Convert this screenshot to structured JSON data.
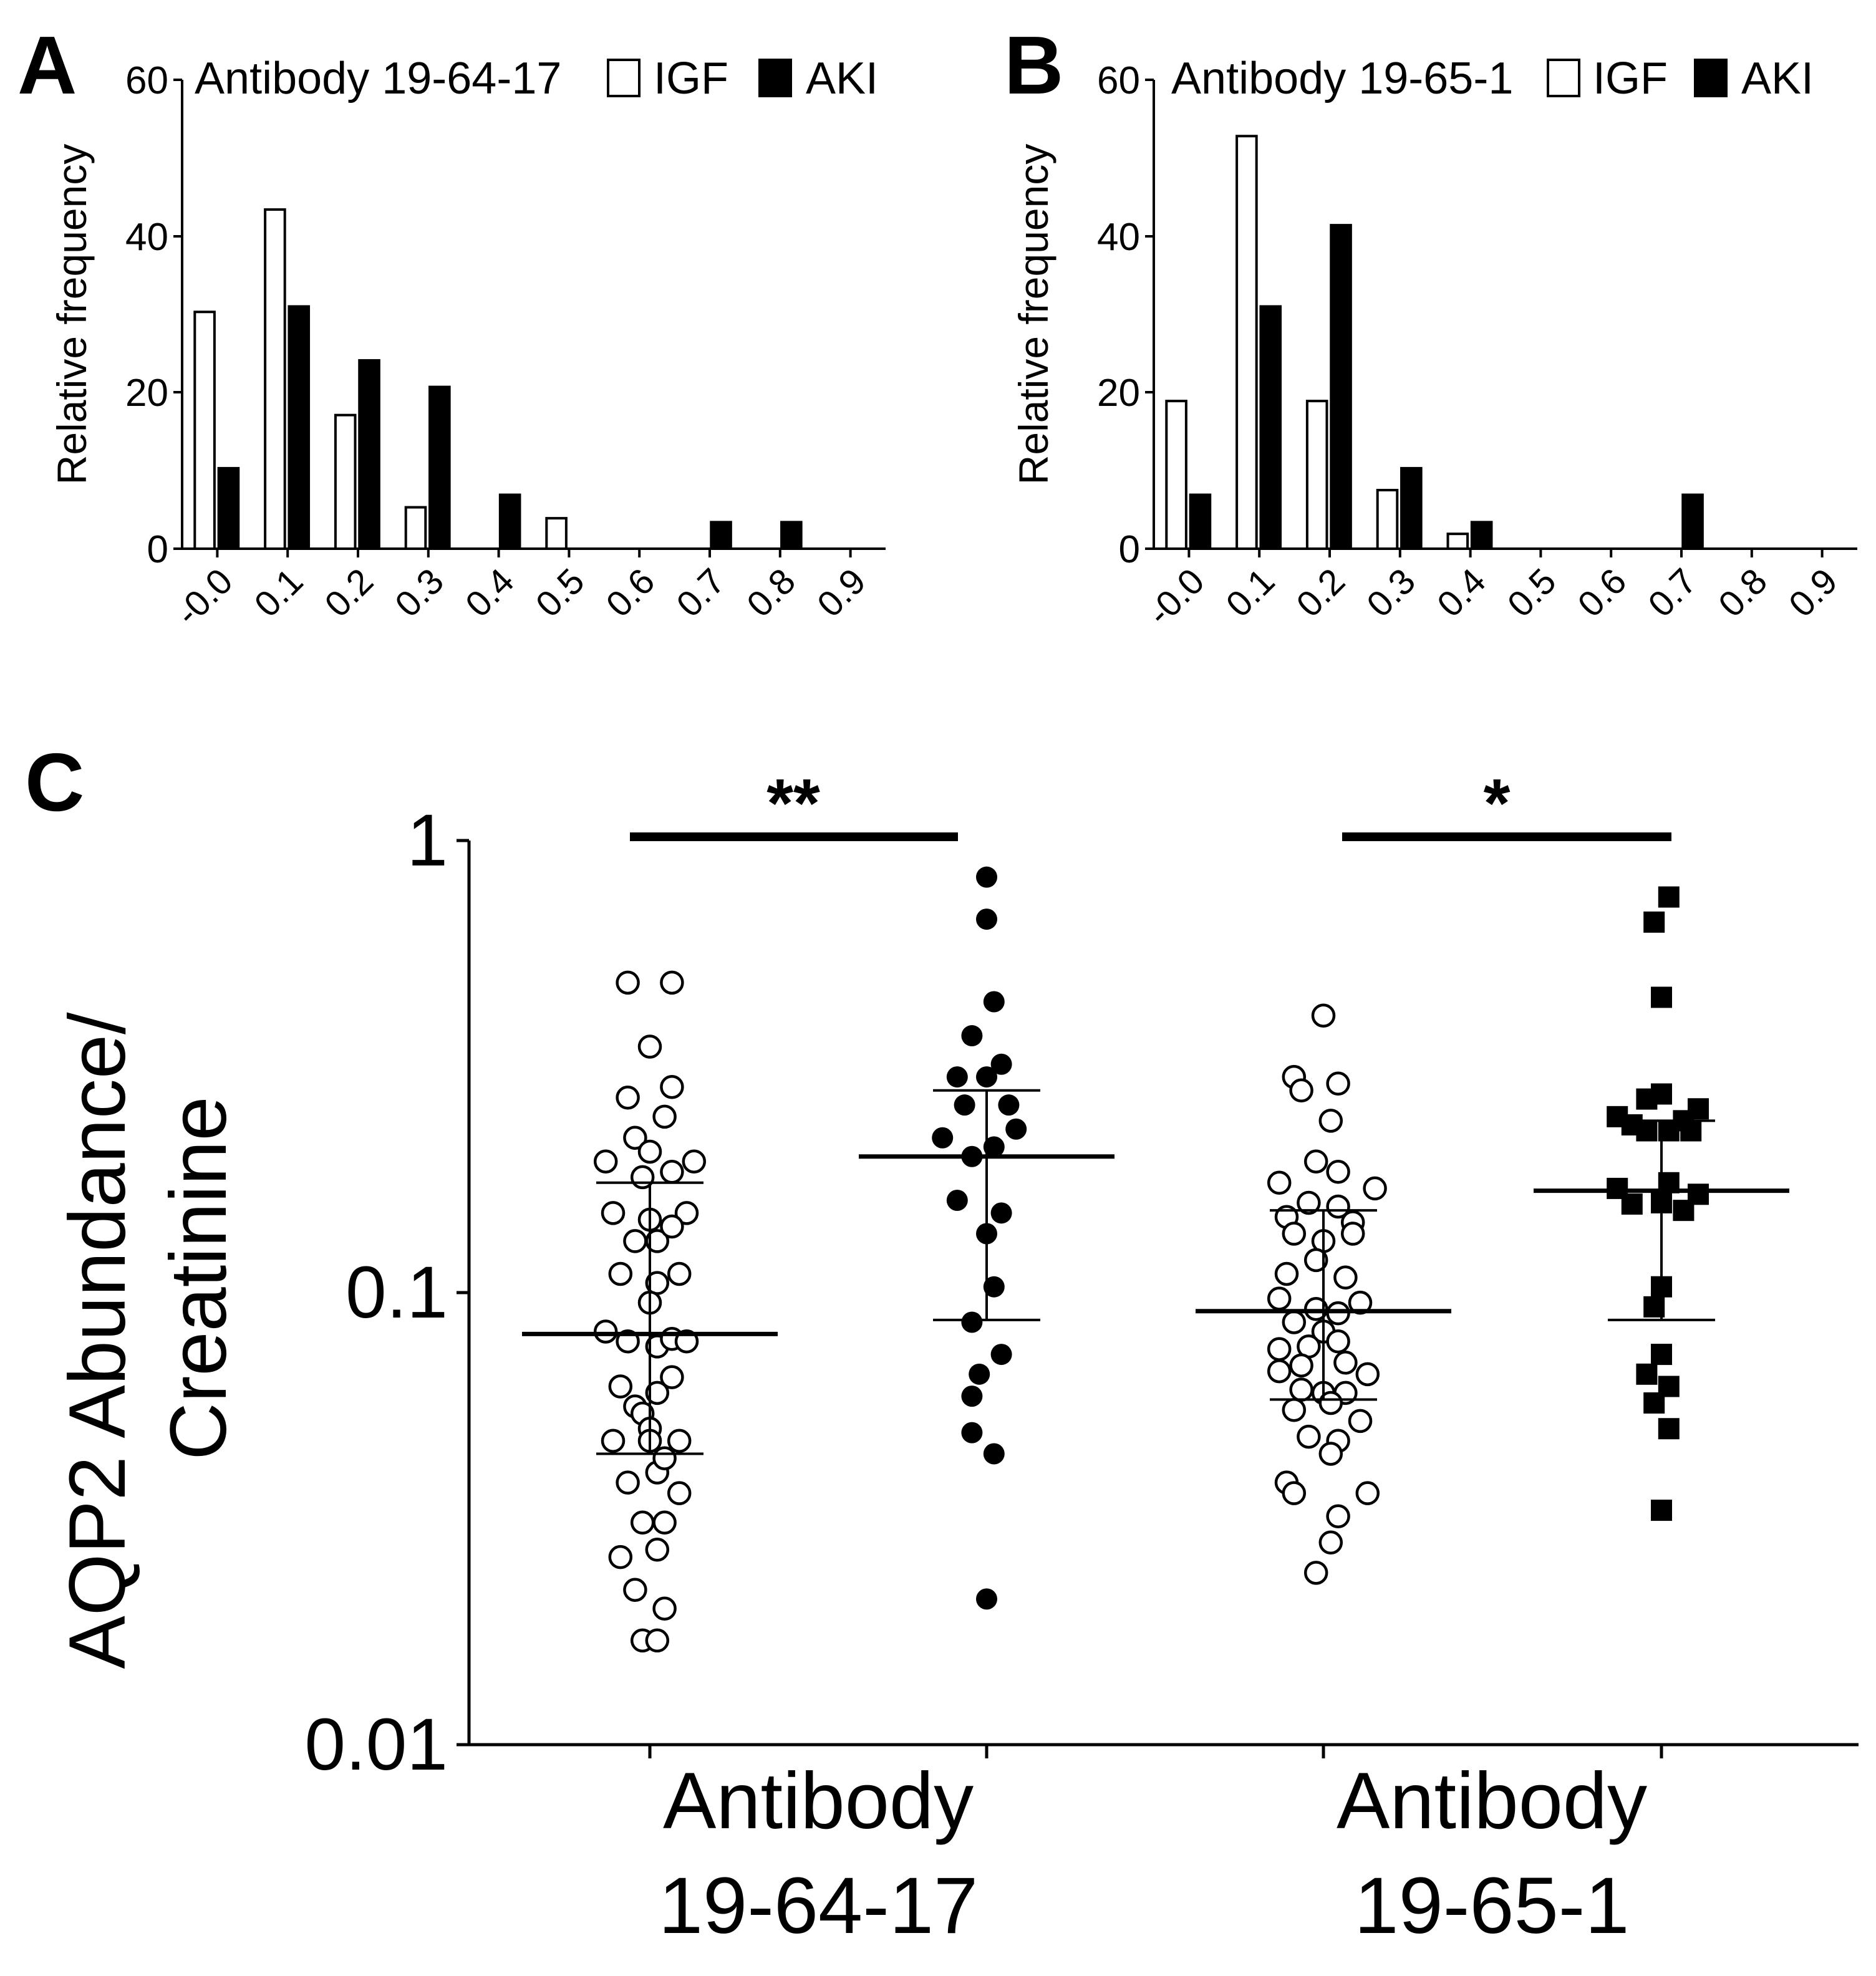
{
  "panels": {
    "A": "A",
    "B": "B",
    "C": "C"
  },
  "legend": {
    "igf": "IGF",
    "aki": "AKI"
  },
  "chart_data": [
    {
      "id": "A",
      "type": "bar",
      "title": "Antibody 19-64-17",
      "xlabel": "",
      "ylabel": "Relative frequency",
      "ylim": [
        0,
        60
      ],
      "yticks": [
        "0",
        "20",
        "40",
        "60"
      ],
      "categories": [
        "-0.0",
        "0.1",
        "0.2",
        "0.3",
        "0.4",
        "0.5",
        "0.6",
        "0.7",
        "0.8",
        "0.9"
      ],
      "series": [
        {
          "name": "IGF",
          "values": [
            30.3,
            43.4,
            17.1,
            5.3,
            0,
            3.9,
            0,
            0,
            0,
            0
          ],
          "fill": "#ffffff"
        },
        {
          "name": "AKI",
          "values": [
            10.3,
            31.0,
            24.1,
            20.7,
            6.9,
            0,
            0,
            3.4,
            3.4,
            0
          ],
          "fill": "#000000"
        }
      ]
    },
    {
      "id": "B",
      "type": "bar",
      "title": "Antibody 19-65-1",
      "xlabel": "",
      "ylabel": "Relative frequency",
      "ylim": [
        0,
        60
      ],
      "yticks": [
        "0",
        "20",
        "40",
        "60"
      ],
      "categories": [
        "-0.0",
        "0.1",
        "0.2",
        "0.3",
        "0.4",
        "0.5",
        "0.6",
        "0.7",
        "0.8",
        "0.9"
      ],
      "series": [
        {
          "name": "IGF",
          "values": [
            18.9,
            52.8,
            18.9,
            7.5,
            1.9,
            0,
            0,
            0,
            0,
            0
          ],
          "fill": "#ffffff"
        },
        {
          "name": "AKI",
          "values": [
            6.9,
            31.0,
            41.4,
            10.3,
            3.4,
            0,
            0,
            6.9,
            0,
            0
          ],
          "fill": "#000000"
        }
      ]
    },
    {
      "id": "C",
      "type": "scatter",
      "title": "",
      "xlabel": "",
      "ylabel": [
        "AQP2 Abundance/",
        "Creatinine"
      ],
      "yscale": "log",
      "ylim": [
        0.01,
        1
      ],
      "yticks": [
        "0.01",
        "0.1",
        "1"
      ],
      "categories": [
        [
          "Antibody",
          "19-64-17"
        ],
        [
          "Antibody",
          "19-65-1"
        ]
      ],
      "significance": [
        "**",
        "*"
      ],
      "series": [
        {
          "name": "IGF 19-64-17",
          "group": 0,
          "marker": "open-circle",
          "median": 0.081,
          "iqr": [
            0.044,
            0.175
          ],
          "points": [
            [
              -0.15,
              0.485
            ],
            [
              0.15,
              0.485
            ],
            [
              0,
              0.35
            ],
            [
              -0.15,
              0.27
            ],
            [
              0.15,
              0.285
            ],
            [
              0.1,
              0.245
            ],
            [
              -0.1,
              0.22
            ],
            [
              0,
              0.205
            ],
            [
              -0.3,
              0.195
            ],
            [
              -0.05,
              0.18
            ],
            [
              0.15,
              0.185
            ],
            [
              0.3,
              0.195
            ],
            [
              -0.25,
              0.15
            ],
            [
              0,
              0.145
            ],
            [
              0.25,
              0.15
            ],
            [
              -0.1,
              0.13
            ],
            [
              0.05,
              0.13
            ],
            [
              0.15,
              0.14
            ],
            [
              -0.2,
              0.11
            ],
            [
              0.05,
              0.105
            ],
            [
              0.2,
              0.11
            ],
            [
              0,
              0.095
            ],
            [
              -0.3,
              0.082
            ],
            [
              -0.15,
              0.078
            ],
            [
              0.05,
              0.076
            ],
            [
              0.15,
              0.079
            ],
            [
              0.25,
              0.078
            ],
            [
              -0.2,
              0.062
            ],
            [
              0.15,
              0.065
            ],
            [
              -0.1,
              0.056
            ],
            [
              0.05,
              0.06
            ],
            [
              -0.05,
              0.054
            ],
            [
              0,
              0.05
            ],
            [
              -0.25,
              0.047
            ],
            [
              0,
              0.047
            ],
            [
              0.2,
              0.047
            ],
            [
              -0.15,
              0.038
            ],
            [
              0.05,
              0.04
            ],
            [
              0.1,
              0.043
            ],
            [
              0.2,
              0.036
            ],
            [
              -0.05,
              0.031
            ],
            [
              0.1,
              0.031
            ],
            [
              -0.2,
              0.026
            ],
            [
              0.05,
              0.027
            ],
            [
              -0.1,
              0.022
            ],
            [
              0.1,
              0.02
            ],
            [
              -0.05,
              0.017
            ],
            [
              0.05,
              0.017
            ]
          ]
        },
        {
          "name": "AKI 19-64-17",
          "group": 1,
          "marker": "filled-circle",
          "median": 0.2,
          "iqr": [
            0.087,
            0.28
          ],
          "points": [
            [
              0,
              0.83
            ],
            [
              0,
              0.67
            ],
            [
              0.05,
              0.44
            ],
            [
              -0.1,
              0.37
            ],
            [
              -0.2,
              0.3
            ],
            [
              0,
              0.3
            ],
            [
              0.1,
              0.32
            ],
            [
              -0.15,
              0.26
            ],
            [
              0.15,
              0.26
            ],
            [
              0.2,
              0.23
            ],
            [
              -0.3,
              0.22
            ],
            [
              -0.1,
              0.2
            ],
            [
              0.05,
              0.21
            ],
            [
              -0.2,
              0.16
            ],
            [
              0.1,
              0.15
            ],
            [
              0,
              0.135
            ],
            [
              0.05,
              0.103
            ],
            [
              -0.1,
              0.086
            ],
            [
              0.1,
              0.073
            ],
            [
              -0.05,
              0.066
            ],
            [
              -0.1,
              0.059
            ],
            [
              -0.1,
              0.049
            ],
            [
              0.05,
              0.044
            ],
            [
              0,
              0.021
            ]
          ]
        },
        {
          "name": "IGF 19-65-1",
          "group": 2,
          "marker": "open-circle",
          "median": 0.091,
          "iqr": [
            0.058,
            0.152
          ],
          "points": [
            [
              0,
              0.41
            ],
            [
              -0.2,
              0.3
            ],
            [
              0.1,
              0.29
            ],
            [
              -0.15,
              0.28
            ],
            [
              0.05,
              0.24
            ],
            [
              -0.05,
              0.195
            ],
            [
              0.1,
              0.185
            ],
            [
              -0.3,
              0.175
            ],
            [
              0.35,
              0.17
            ],
            [
              -0.1,
              0.158
            ],
            [
              0.1,
              0.155
            ],
            [
              -0.25,
              0.147
            ],
            [
              0.2,
              0.143
            ],
            [
              -0.2,
              0.135
            ],
            [
              0,
              0.13
            ],
            [
              0.2,
              0.135
            ],
            [
              -0.05,
              0.118
            ],
            [
              -0.25,
              0.11
            ],
            [
              0.15,
              0.108
            ],
            [
              -0.3,
              0.097
            ],
            [
              -0.05,
              0.092
            ],
            [
              0.25,
              0.095
            ],
            [
              0.1,
              0.09
            ],
            [
              -0.2,
              0.086
            ],
            [
              0,
              0.082
            ],
            [
              -0.3,
              0.075
            ],
            [
              -0.1,
              0.076
            ],
            [
              0.1,
              0.078
            ],
            [
              -0.15,
              0.069
            ],
            [
              0.15,
              0.07
            ],
            [
              -0.3,
              0.067
            ],
            [
              0.3,
              0.066
            ],
            [
              -0.15,
              0.061
            ],
            [
              0,
              0.06
            ],
            [
              0.15,
              0.06
            ],
            [
              -0.2,
              0.055
            ],
            [
              0.05,
              0.057
            ],
            [
              0.25,
              0.052
            ],
            [
              -0.1,
              0.048
            ],
            [
              0.1,
              0.047
            ],
            [
              -0.25,
              0.038
            ],
            [
              0.05,
              0.044
            ],
            [
              -0.2,
              0.036
            ],
            [
              0.3,
              0.036
            ],
            [
              0.1,
              0.032
            ],
            [
              0.05,
              0.028
            ],
            [
              -0.05,
              0.024
            ]
          ]
        },
        {
          "name": "AKI 19-65-1",
          "group": 3,
          "marker": "filled-square",
          "median": 0.168,
          "iqr": [
            0.087,
            0.24
          ],
          "points": [
            [
              0.05,
              0.75
            ],
            [
              -0.05,
              0.66
            ],
            [
              0,
              0.45
            ],
            [
              0,
              0.275
            ],
            [
              -0.1,
              0.268
            ],
            [
              0.25,
              0.255
            ],
            [
              -0.3,
              0.245
            ],
            [
              0.15,
              0.24
            ],
            [
              -0.2,
              0.235
            ],
            [
              -0.1,
              0.228
            ],
            [
              0.05,
              0.228
            ],
            [
              0.2,
              0.228
            ],
            [
              -0.3,
              0.17
            ],
            [
              0.05,
              0.175
            ],
            [
              0.25,
              0.165
            ],
            [
              -0.2,
              0.157
            ],
            [
              0,
              0.158
            ],
            [
              0.15,
              0.152
            ],
            [
              0,
              0.103
            ],
            [
              -0.05,
              0.093
            ],
            [
              0,
              0.073
            ],
            [
              -0.1,
              0.066
            ],
            [
              -0.05,
              0.057
            ],
            [
              0.05,
              0.062
            ],
            [
              0.05,
              0.05
            ],
            [
              0,
              0.033
            ]
          ]
        }
      ]
    }
  ]
}
